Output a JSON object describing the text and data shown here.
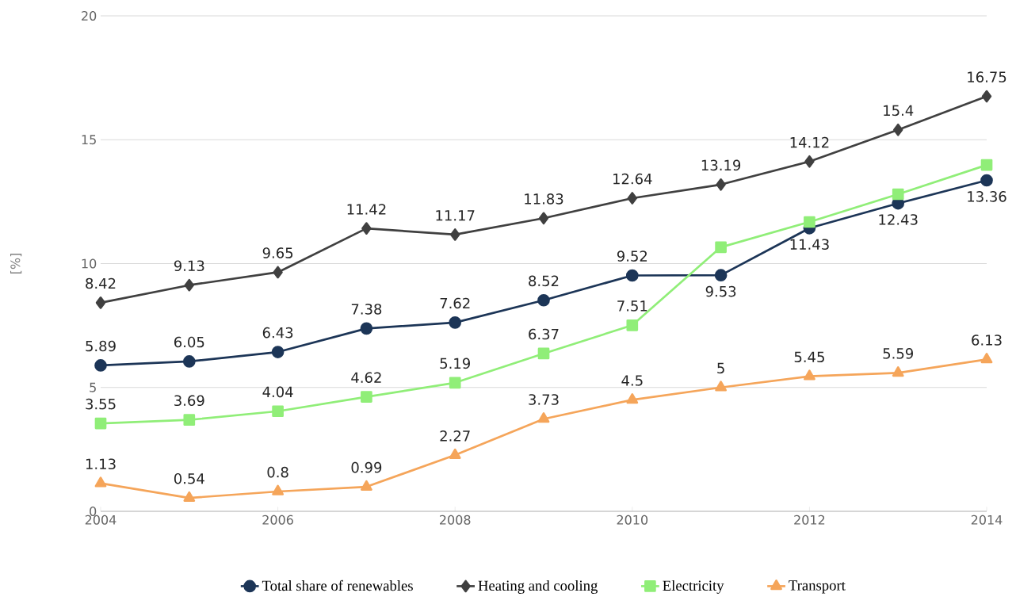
{
  "chart_data": {
    "type": "line",
    "ylabel": "[%]",
    "x": [
      2004,
      2005,
      2006,
      2007,
      2008,
      2009,
      2010,
      2011,
      2012,
      2013,
      2014
    ],
    "series": [
      {
        "name": "Total share of renewables",
        "color": "#1c3557",
        "marker": "circle",
        "values": [
          5.89,
          6.05,
          6.43,
          7.38,
          7.62,
          8.52,
          9.52,
          9.53,
          11.43,
          12.43,
          13.36
        ],
        "value_labels": [
          "5.89",
          "6.05",
          "6.43",
          "7.38",
          "7.62",
          "8.52",
          "9.52",
          "9.53",
          "11.43",
          "12.43",
          "13.36"
        ]
      },
      {
        "name": "Heating and cooling",
        "color": "#404040",
        "marker": "diamond",
        "values": [
          8.42,
          9.13,
          9.65,
          11.42,
          11.17,
          11.83,
          12.64,
          13.19,
          14.12,
          15.4,
          16.75
        ],
        "value_labels": [
          "8.42",
          "9.13",
          "9.65",
          "11.42",
          "11.17",
          "11.83",
          "12.64",
          "13.19",
          "14.12",
          "15.4",
          "16.75"
        ]
      },
      {
        "name": "Electricity",
        "color": "#90ee78",
        "marker": "square",
        "values": [
          3.55,
          3.69,
          4.04,
          4.62,
          5.19,
          6.37,
          7.51,
          10.66,
          11.68,
          12.8,
          13.98
        ],
        "value_labels": [
          "3.55",
          "3.69",
          "4.04",
          "4.62",
          "5.19",
          "6.37",
          "7.51",
          null,
          null,
          null,
          null
        ]
      },
      {
        "name": "Transport",
        "color": "#f5a55a",
        "marker": "triangle",
        "values": [
          1.13,
          0.54,
          0.8,
          0.99,
          2.27,
          3.73,
          4.5,
          5,
          5.45,
          5.59,
          6.13
        ],
        "value_labels": [
          "1.13",
          "0.54",
          "0.8",
          "0.99",
          "2.27",
          "3.73",
          "4.5",
          "5",
          "5.45",
          "5.59",
          "6.13"
        ]
      }
    ],
    "xlim": [
      2004,
      2014
    ],
    "ylim": [
      0,
      20
    ],
    "xticks": [
      2004,
      2006,
      2008,
      2010,
      2012,
      2014
    ],
    "yticks": [
      0,
      5,
      10,
      15,
      20
    ],
    "grid": "y",
    "legend": "bottom",
    "line_style": "solid"
  }
}
